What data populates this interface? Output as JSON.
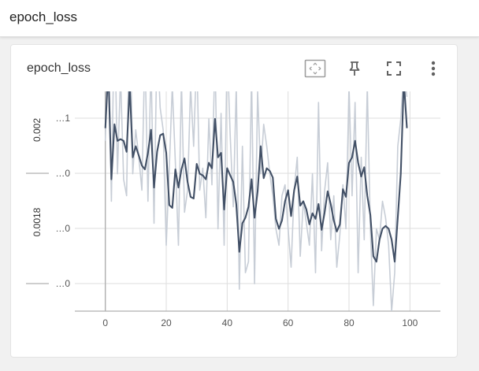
{
  "header": {
    "title": "epoch_loss"
  },
  "card": {
    "title": "epoch_loss",
    "tools": [
      {
        "name": "fit-domain-icon",
        "interactable": true
      },
      {
        "name": "pin-icon",
        "interactable": true
      },
      {
        "name": "fullscreen-icon",
        "interactable": true
      },
      {
        "name": "more-vert-icon",
        "interactable": true
      }
    ]
  },
  "colors": {
    "smoothed": "#425066",
    "raw": "#c7cdd6",
    "grid": "#dddddd",
    "axis": "#9e9e9e",
    "toolbar_icon": "#616161"
  },
  "chart_data": {
    "type": "line",
    "title": "",
    "xlabel": "",
    "ylabel": "",
    "x_ticks": [
      0,
      20,
      40,
      60,
      80,
      100
    ],
    "xlim": [
      -10,
      110
    ],
    "y_tick_labels": [
      "…1",
      "…0",
      "…0",
      "…0"
    ],
    "y_rotated_labels": [
      "0.002",
      "0.0018"
    ],
    "ylim": [
      0.00171,
      0.00211
    ],
    "grid": true,
    "series": [
      {
        "role": "smoothed",
        "x": [
          0,
          1,
          2,
          3,
          4,
          5,
          6,
          7,
          8,
          9,
          10,
          11,
          12,
          13,
          14,
          15,
          16,
          17,
          18,
          19,
          20,
          21,
          22,
          23,
          24,
          25,
          26,
          27,
          28,
          29,
          30,
          31,
          32,
          33,
          34,
          35,
          36,
          37,
          38,
          39,
          40,
          41,
          42,
          43,
          44,
          45,
          46,
          47,
          48,
          49,
          50,
          51,
          52,
          53,
          54,
          55,
          56,
          57,
          58,
          59,
          60,
          61,
          62,
          63,
          64,
          65,
          66,
          67,
          68,
          69,
          70,
          71,
          72,
          73,
          74,
          75,
          76,
          77,
          78,
          79,
          80,
          81,
          82,
          83,
          84,
          85,
          86,
          87,
          88,
          89,
          90,
          91,
          92,
          93,
          94,
          95,
          96,
          97,
          98,
          99
        ],
        "values": [
          0.002043,
          0.00215,
          0.00195,
          0.00205,
          0.00202,
          0.002023,
          0.00202,
          0.002,
          0.00212,
          0.00199,
          0.00201,
          0.001993,
          0.001975,
          0.001968,
          0.001998,
          0.00204,
          0.001935,
          0.002,
          0.00203,
          0.002033,
          0.001998,
          0.001903,
          0.001898,
          0.001968,
          0.001935,
          0.001968,
          0.001988,
          0.001945,
          0.001918,
          0.001915,
          0.001978,
          0.00196,
          0.001957,
          0.00195,
          0.00198,
          0.00197,
          0.00206,
          0.00199,
          0.001998,
          0.001895,
          0.00197,
          0.001957,
          0.001945,
          0.001905,
          0.001818,
          0.00187,
          0.00188,
          0.0019,
          0.00195,
          0.00188,
          0.001928,
          0.00201,
          0.001952,
          0.00197,
          0.001965,
          0.001953,
          0.001878,
          0.00186,
          0.001875,
          0.00191,
          0.00193,
          0.001883,
          0.00193,
          0.001955,
          0.001902,
          0.00191,
          0.001895,
          0.001868,
          0.001888,
          0.001878,
          0.001905,
          0.001858,
          0.00189,
          0.001928,
          0.001905,
          0.001875,
          0.001855,
          0.001868,
          0.001932,
          0.001918,
          0.00198,
          0.00199,
          0.00202,
          0.00198,
          0.001955,
          0.001972,
          0.00192,
          0.001885,
          0.00181,
          0.0018,
          0.00184,
          0.00186,
          0.001865,
          0.00186,
          0.00184,
          0.0018,
          0.00188,
          0.00196,
          0.00213,
          0.002043
        ]
      },
      {
        "role": "raw",
        "x": [
          0,
          1,
          2,
          3,
          4,
          5,
          6,
          7,
          8,
          9,
          10,
          11,
          12,
          13,
          14,
          15,
          16,
          17,
          18,
          19,
          20,
          21,
          22,
          23,
          24,
          25,
          26,
          27,
          28,
          29,
          30,
          31,
          32,
          33,
          34,
          35,
          36,
          37,
          38,
          39,
          40,
          41,
          42,
          43,
          44,
          45,
          46,
          47,
          48,
          49,
          50,
          51,
          52,
          53,
          54,
          55,
          56,
          57,
          58,
          59,
          60,
          61,
          62,
          63,
          64,
          65,
          66,
          67,
          68,
          69,
          70,
          71,
          72,
          73,
          74,
          75,
          76,
          77,
          78,
          79,
          80,
          81,
          82,
          83,
          84,
          85,
          86,
          87,
          88,
          89,
          90,
          91,
          92,
          93,
          94,
          95,
          96,
          97,
          98,
          99
        ],
        "values": [
          0.00202,
          0.00222,
          0.00191,
          0.00226,
          0.00196,
          0.00214,
          0.00195,
          0.00192,
          0.00228,
          0.00196,
          0.00204,
          0.00199,
          0.00193,
          0.00219,
          0.00191,
          0.00216,
          0.00187,
          0.00221,
          0.00208,
          0.00204,
          0.00183,
          0.00197,
          0.00212,
          0.00198,
          0.00183,
          0.00213,
          0.00189,
          0.00193,
          0.00212,
          0.00201,
          0.00218,
          0.00193,
          0.00197,
          0.00188,
          0.00206,
          0.00194,
          0.00218,
          0.00186,
          0.00207,
          0.00183,
          0.00219,
          0.00203,
          0.0019,
          0.00212,
          0.00175,
          0.00201,
          0.00178,
          0.0018,
          0.00214,
          0.00176,
          0.00211,
          0.00196,
          0.00205,
          0.00201,
          0.00196,
          0.00192,
          0.00186,
          0.00183,
          0.00192,
          0.00194,
          0.00186,
          0.00179,
          0.00193,
          0.00199,
          0.00181,
          0.00191,
          0.00187,
          0.00183,
          0.00196,
          0.00178,
          0.00209,
          0.00182,
          0.00193,
          0.00198,
          0.00184,
          0.00192,
          0.00179,
          0.00185,
          0.00194,
          0.00186,
          0.00212,
          0.00192,
          0.00209,
          0.00178,
          0.00199,
          0.00184,
          0.00212,
          0.00186,
          0.00172,
          0.00186,
          0.00184,
          0.00191,
          0.00188,
          0.00183,
          0.00171,
          0.00178,
          0.00201,
          0.00206,
          0.00215,
          0.0021
        ]
      }
    ]
  }
}
